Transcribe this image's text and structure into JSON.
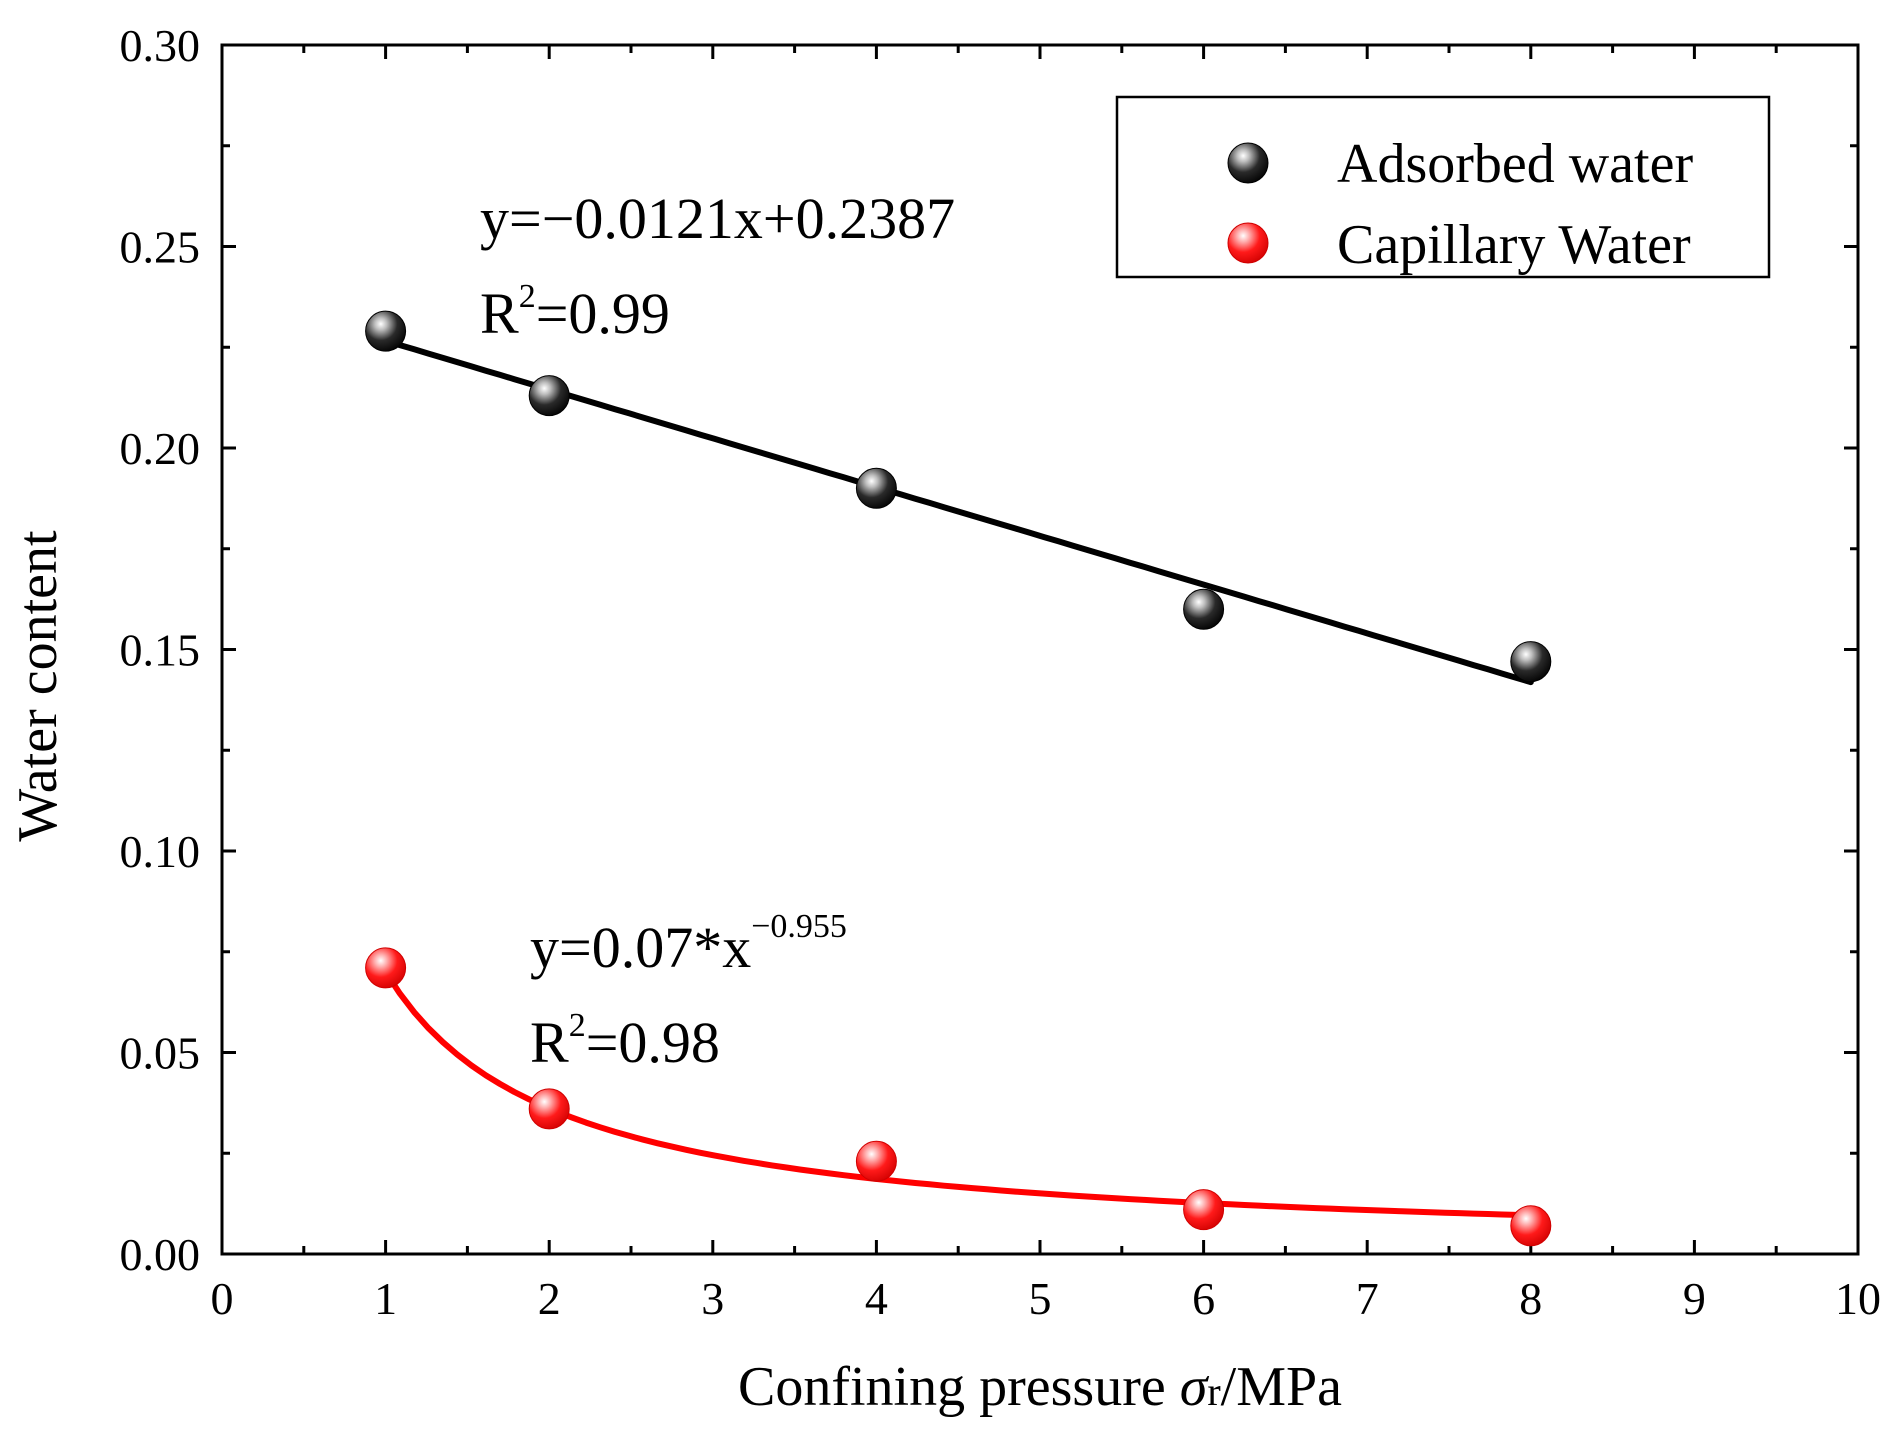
{
  "chart_data": {
    "type": "scatter",
    "xlabel": {
      "prefix": "Confining pressure ",
      "symbol": "σ",
      "subscript": "r",
      "suffix": "/MPa"
    },
    "ylabel": "Water content",
    "xlim": [
      0,
      10
    ],
    "ylim": [
      0,
      0.3
    ],
    "xticks": [
      0,
      1,
      2,
      3,
      4,
      5,
      6,
      7,
      8,
      9,
      10
    ],
    "yticks": [
      "0.00",
      "0.05",
      "0.10",
      "0.15",
      "0.20",
      "0.25",
      "0.30"
    ],
    "grid": false,
    "legend": {
      "position": "top-right",
      "entries": [
        "Adsorbed water",
        "Capillary Water"
      ]
    },
    "series": [
      {
        "name": "Adsorbed water",
        "color": "#000000",
        "x": [
          1,
          2,
          4,
          6,
          8
        ],
        "y": [
          0.229,
          0.213,
          0.19,
          0.16,
          0.147
        ],
        "fit": {
          "kind": "linear",
          "slope": -0.0121,
          "intercept": 0.2387,
          "x_range": [
            1,
            8
          ]
        },
        "equation": {
          "main": "y=−0.0121x+0.2387",
          "r2_prefix": "R",
          "r2_sup": "2",
          "r2_value": "=0.99"
        }
      },
      {
        "name": "Capillary Water",
        "color": "#ff0000",
        "x": [
          1,
          2,
          4,
          6,
          8
        ],
        "y": [
          0.071,
          0.036,
          0.023,
          0.011,
          0.007
        ],
        "fit": {
          "kind": "power",
          "a": 0.07,
          "b": -0.955,
          "x_range": [
            1,
            8
          ]
        },
        "equation": {
          "main": "y=0.07*x",
          "main_sup": "−0.955",
          "r2_prefix": "R",
          "r2_sup": "2",
          "r2_value": "=0.98"
        }
      }
    ]
  }
}
